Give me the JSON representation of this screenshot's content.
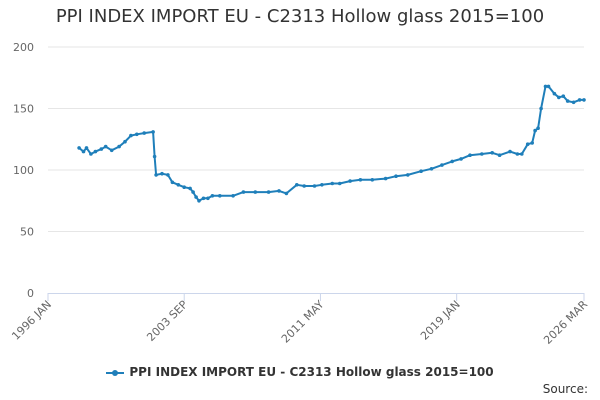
{
  "chart_data": {
    "type": "line",
    "title": "PPI INDEX IMPORT EU - C2313 Hollow glass 2015=100",
    "xlabel": "",
    "ylabel": "",
    "ylim": [
      0,
      200
    ],
    "yticks": [
      0,
      50,
      100,
      150,
      200
    ],
    "xlim": [
      "1996-01",
      "2026-03"
    ],
    "xticks": [
      {
        "date": "1996-01",
        "label": "1996 JAN"
      },
      {
        "date": "2003-09",
        "label": "2003 SEP"
      },
      {
        "date": "2011-05",
        "label": "2011 MAY"
      },
      {
        "date": "2019-01",
        "label": "2019 JAN"
      },
      {
        "date": "2026-03",
        "label": "2026 MAR"
      }
    ],
    "grid": true,
    "legend_position": "bottom",
    "colors": {
      "series": "#1f7fba",
      "grid": "#e6e6e6",
      "axis": "#ccd6eb"
    },
    "series": [
      {
        "name": "PPI INDEX IMPORT EU - C2313 Hollow glass 2015=100",
        "points": [
          [
            "1997-10",
            118
          ],
          [
            "1998-01",
            115
          ],
          [
            "1998-03",
            118
          ],
          [
            "1998-06",
            113
          ],
          [
            "1998-09",
            115
          ],
          [
            "1999-01",
            117
          ],
          [
            "1999-04",
            119
          ],
          [
            "1999-08",
            116
          ],
          [
            "2000-01",
            119
          ],
          [
            "2000-05",
            123
          ],
          [
            "2000-09",
            128
          ],
          [
            "2001-01",
            129
          ],
          [
            "2001-06",
            130
          ],
          [
            "2001-12",
            131
          ],
          [
            "2002-01",
            111
          ],
          [
            "2002-02",
            96
          ],
          [
            "2002-06",
            97
          ],
          [
            "2002-10",
            96
          ],
          [
            "2003-01",
            90
          ],
          [
            "2003-05",
            88
          ],
          [
            "2003-09",
            86
          ],
          [
            "2004-01",
            85
          ],
          [
            "2004-03",
            82
          ],
          [
            "2004-05",
            78
          ],
          [
            "2004-07",
            75
          ],
          [
            "2004-10",
            77
          ],
          [
            "2005-01",
            77
          ],
          [
            "2005-04",
            79
          ],
          [
            "2005-09",
            79
          ],
          [
            "2006-06",
            79
          ],
          [
            "2007-01",
            82
          ],
          [
            "2007-09",
            82
          ],
          [
            "2008-06",
            82
          ],
          [
            "2009-01",
            83
          ],
          [
            "2009-06",
            81
          ],
          [
            "2010-01",
            88
          ],
          [
            "2010-06",
            87
          ],
          [
            "2011-01",
            87
          ],
          [
            "2011-06",
            88
          ],
          [
            "2012-01",
            89
          ],
          [
            "2012-06",
            89
          ],
          [
            "2013-01",
            91
          ],
          [
            "2013-08",
            92
          ],
          [
            "2014-04",
            92
          ],
          [
            "2015-01",
            93
          ],
          [
            "2015-08",
            95
          ],
          [
            "2016-04",
            96
          ],
          [
            "2017-01",
            99
          ],
          [
            "2017-08",
            101
          ],
          [
            "2018-03",
            104
          ],
          [
            "2018-10",
            107
          ],
          [
            "2019-04",
            109
          ],
          [
            "2019-10",
            112
          ],
          [
            "2020-06",
            113
          ],
          [
            "2021-01",
            114
          ],
          [
            "2021-06",
            112
          ],
          [
            "2022-01",
            115
          ],
          [
            "2022-06",
            113
          ],
          [
            "2022-09",
            113
          ],
          [
            "2023-01",
            121
          ],
          [
            "2023-04",
            122
          ],
          [
            "2023-06",
            132
          ],
          [
            "2023-08",
            134
          ],
          [
            "2023-10",
            150
          ],
          [
            "2024-01",
            168
          ],
          [
            "2024-03",
            168
          ],
          [
            "2024-07",
            162
          ],
          [
            "2024-10",
            159
          ],
          [
            "2025-01",
            160
          ],
          [
            "2025-04",
            156
          ],
          [
            "2025-08",
            155
          ],
          [
            "2025-12",
            157
          ],
          [
            "2026-03",
            157
          ]
        ]
      }
    ],
    "legend_label": "PPI INDEX IMPORT EU - C2313 Hollow glass 2015=100",
    "source_text": "Source:"
  }
}
